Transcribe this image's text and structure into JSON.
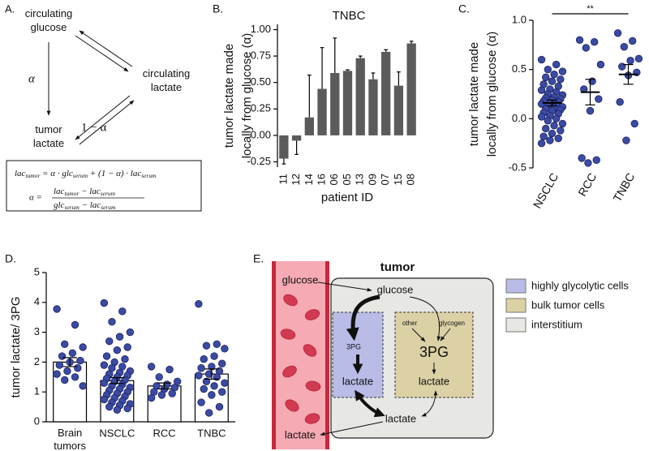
{
  "panel_a": {
    "label": "A.",
    "nodes": [
      [
        "circulating",
        "glucose"
      ],
      [
        "circulating",
        "lactate"
      ],
      [
        "tumor",
        "lactate"
      ]
    ],
    "edges": [
      "α",
      "1 − α"
    ],
    "formula": [
      "lac",
      "tumor",
      " = α · glc",
      "serum",
      " + (1 − α) · lac",
      "serum"
    ],
    "lhs": "α =",
    "numerator": [
      "lac",
      "tumor",
      " − lac",
      "serum"
    ],
    "denominator": [
      "glc",
      "serum",
      " − lac",
      "serum"
    ]
  },
  "chart_data": [
    {
      "type": "bar",
      "panel_label": "B.",
      "title": "TNBC",
      "ylabel": [
        "tumor lactate made",
        "locally from glucose (α)"
      ],
      "xlabel": "patient ID",
      "categories": [
        "11",
        "12",
        "14",
        "16",
        "06",
        "05",
        "13",
        "09",
        "07",
        "15",
        "08"
      ],
      "values": [
        -0.22,
        -0.05,
        0.17,
        0.44,
        0.59,
        0.61,
        0.73,
        0.53,
        0.79,
        0.47,
        0.87
      ],
      "errors": [
        0.05,
        0.13,
        0.4,
        0.39,
        0.33,
        0.01,
        0.02,
        0.06,
        0.02,
        0.13,
        0.02
      ],
      "error_bars": "one-sided",
      "color": "#5b5b5b",
      "ylim": [
        -0.3,
        1.05
      ],
      "yticks": [
        -0.25,
        {
          "value": 0,
          "label": "0.00"
        },
        0.25,
        {
          "value": 0.5,
          "label": "0.50"
        },
        0.75,
        {
          "value": 1,
          "label": "1.00"
        }
      ]
    },
    {
      "type": "strip",
      "panel_label": "C.",
      "ylabel": [
        "tumor lactate made",
        "locally from glucose (α)"
      ],
      "categories": [
        "NSCLC",
        "RCC",
        "TNBC"
      ],
      "points": [
        [
          0.6,
          0.55,
          0.5,
          0.48,
          0.45,
          0.42,
          0.4,
          0.38,
          0.35,
          0.33,
          0.3,
          0.29,
          0.27,
          0.25,
          0.24,
          0.22,
          0.21,
          0.2,
          0.19,
          0.18,
          0.17,
          0.16,
          0.15,
          0.14,
          0.13,
          0.12,
          0.11,
          0.1,
          0.09,
          0.08,
          0.06,
          0.05,
          0.03,
          0.02,
          0.0,
          -0.02,
          -0.05,
          -0.07,
          -0.1,
          -0.12,
          -0.15,
          -0.18,
          -0.2,
          -0.22,
          -0.25
        ],
        [
          0.8,
          0.78,
          0.72,
          0.55,
          0.38,
          0.3,
          0.2,
          0.08,
          -0.4,
          -0.42,
          -0.45
        ],
        [
          0.87,
          0.79,
          0.73,
          0.61,
          0.59,
          0.53,
          0.47,
          0.44,
          0.17,
          -0.05,
          -0.22
        ]
      ],
      "means": [
        0.16,
        0.27,
        0.45
      ],
      "errors": [
        0.03,
        0.13,
        0.1
      ],
      "point_color": "#3b4ba3",
      "annotation": "**",
      "ylim": [
        -0.5,
        1.0
      ],
      "yticks": [
        -0.5,
        {
          "value": 0,
          "label": "0.0"
        },
        0.5,
        {
          "value": 1,
          "label": "1.0"
        }
      ]
    },
    {
      "type": "bar",
      "panel_label": "D.",
      "ylabel": [
        "tumor lactate/ 3PG"
      ],
      "categories": [
        "Brain tumors",
        "NSCLC",
        "RCC",
        "TNBC"
      ],
      "values": [
        2.0,
        1.38,
        1.2,
        1.6
      ],
      "errors": [
        0.15,
        0.1,
        0.1,
        0.17
      ],
      "error_bars": "two-sided",
      "color": "#ffffff",
      "point_color": "#3b4ba3",
      "points": [
        [
          3.78,
          3.25,
          2.6,
          2.5,
          2.3,
          2.2,
          2.05,
          2.0,
          1.9,
          1.8,
          1.7,
          1.6,
          1.5,
          1.4,
          1.2
        ],
        [
          3.98,
          3.7,
          3.35,
          3.0,
          2.85,
          2.7,
          2.5,
          2.4,
          2.2,
          2.1,
          2.0,
          1.9,
          1.85,
          1.8,
          1.7,
          1.65,
          1.6,
          1.55,
          1.5,
          1.45,
          1.4,
          1.35,
          1.3,
          1.25,
          1.2,
          1.15,
          1.1,
          1.05,
          1.0,
          0.95,
          0.9,
          0.85,
          0.8,
          0.75,
          0.7,
          0.65,
          0.6,
          0.55,
          0.5,
          0.45,
          0.4
        ],
        [
          1.85,
          1.75,
          1.5,
          1.35,
          1.25,
          1.2,
          1.15,
          1.1,
          1.0,
          0.95,
          0.9,
          0.8
        ],
        [
          3.95,
          2.6,
          2.55,
          2.45,
          2.2,
          2.1,
          1.95,
          1.85,
          1.8,
          1.7,
          1.6,
          1.55,
          1.5,
          1.35,
          1.3,
          1.2,
          1.1,
          1.0,
          0.9,
          0.65,
          0.5,
          0.3
        ]
      ],
      "ylim": [
        0,
        5
      ],
      "yticks": [
        0,
        1,
        2,
        3,
        4,
        5
      ]
    }
  ],
  "panel_e": {
    "label": "E.",
    "title": "tumor",
    "vessel_glucose": "glucose",
    "vessel_lactate": "lactate",
    "tumor_glucose": "glucose",
    "glycolytic_3pg": "3PG",
    "glycolytic_lactate": "lactate",
    "bulk_other": "other",
    "bulk_glycogen": "glycogen",
    "bulk_3pg": "3PG",
    "bulk_lactate": "lactate",
    "interstitium_lactate": "lactate",
    "legend": [
      "highly glycolytic cells",
      "bulk tumor cells",
      "interstitium"
    ]
  }
}
